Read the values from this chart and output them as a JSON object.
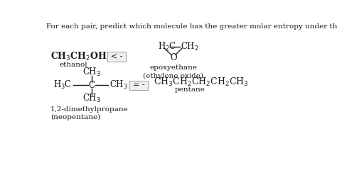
{
  "background_color": "#ffffff",
  "header": "For each pair, predict which molecule has the greater molar entropy under the same conditions (assume gaseous species).",
  "header_fontsize": 7.5,
  "text_color": "#1a1a1a",
  "font_family": "serif",
  "pair1_left_formula": "CH$_3$CH$_2$OH",
  "pair1_left_name": "ethanol",
  "pair1_symbol": "< -",
  "pair1_right_formula_left": "H$_2$C",
  "pair1_right_formula_right": "CH$_2$",
  "pair1_right_o": "O",
  "pair1_right_name": "epoxyethane\n(ethylene oxide)",
  "pair2_left_ch3_top": "CH$_3$",
  "pair2_left_h3c": "H$_3$C",
  "pair2_left_c": "C",
  "pair2_left_ch3_right": "CH$_3$",
  "pair2_left_ch3_bot": "CH$_3$",
  "pair2_left_name": "1,2-dimethylpropane\n(neopentane)",
  "pair2_symbol": "= -",
  "pair2_right_formula": "CH$_3$CH$_2$CH$_2$CH$_2$CH$_3$",
  "pair2_right_name": "pentane"
}
